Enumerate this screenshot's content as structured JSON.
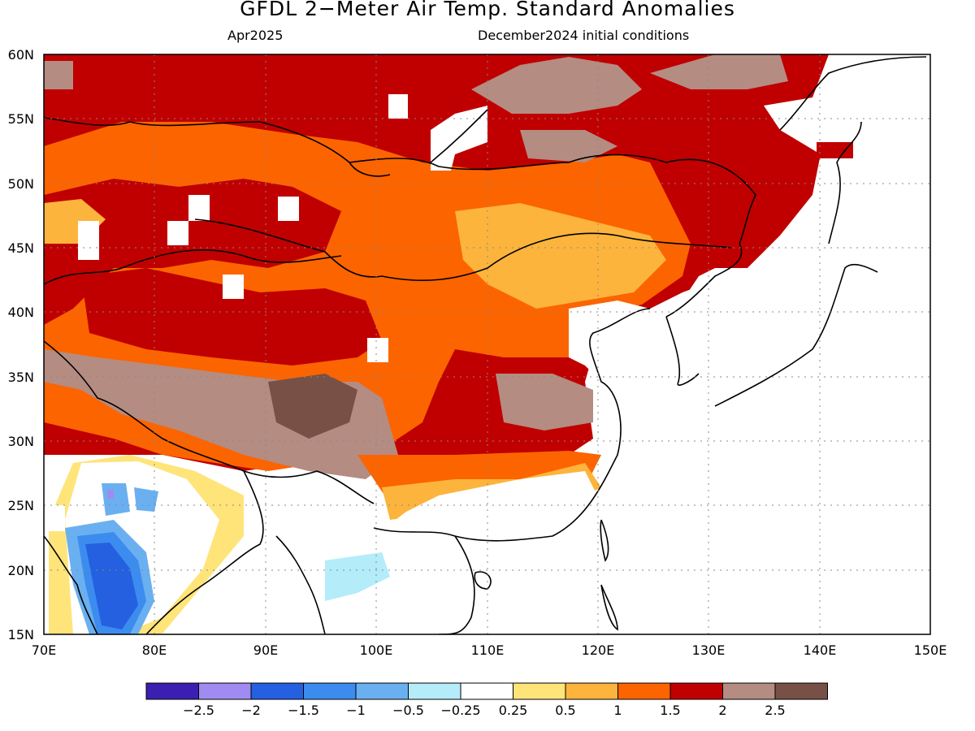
{
  "title": "GFDL 2−Meter Air Temp. Standard Anomalies",
  "subtitle_left": "Apr2025",
  "subtitle_right": "December2024 initial conditions",
  "lon_ticks": [
    "70E",
    "80E",
    "90E",
    "100E",
    "110E",
    "120E",
    "130E",
    "140E",
    "150E"
  ],
  "lat_ticks": [
    "60N",
    "55N",
    "50N",
    "45N",
    "40N",
    "35N",
    "30N",
    "25N",
    "20N",
    "15N"
  ],
  "map_extent": {
    "lon": [
      70,
      150
    ],
    "lat": [
      15,
      60
    ]
  },
  "grid": "dotted",
  "colorbar": {
    "labels": [
      "−2.5",
      "−2",
      "−1.5",
      "−1",
      "−0.5",
      "−0.25",
      "0.25",
      "0.5",
      "1",
      "1.5",
      "2",
      "2.5"
    ],
    "colors": [
      "#3b1fb0",
      "#a08cf0",
      "#2460e0",
      "#3c8cf0",
      "#6ab0f0",
      "#b4ecfa",
      "#ffffff",
      "#ffe47a",
      "#fcb43c",
      "#fc6400",
      "#c00000",
      "#b48c82",
      "#785046"
    ]
  },
  "regions": [
    {
      "name": "siberia-strong-warm",
      "level": "2"
    },
    {
      "name": "mongolia-warm",
      "level": "1.5"
    },
    {
      "name": "tibet-very-warm",
      "level": "2.5"
    },
    {
      "name": "india-cold",
      "level": "-1.5"
    },
    {
      "name": "south-china-neutral",
      "level": "0.25"
    },
    {
      "name": "japan-neutral",
      "level": "0.25"
    }
  ]
}
